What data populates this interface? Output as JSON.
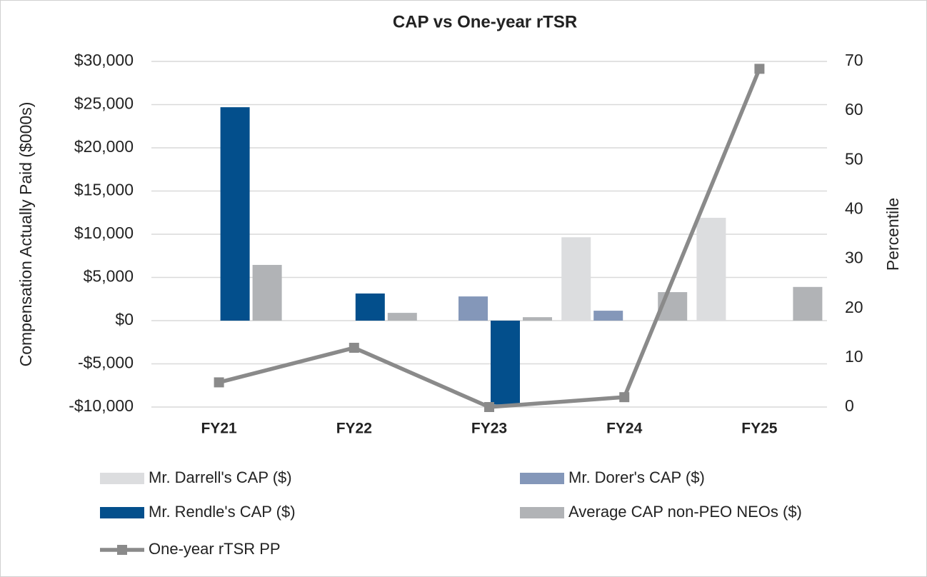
{
  "chart_data": {
    "type": "bar",
    "title": "CAP vs One-year rTSR",
    "y_label": "Compensation Actually Paid ($000s)",
    "y2_label": "Percentile",
    "categories": [
      "FY21",
      "FY22",
      "FY23",
      "FY24",
      "FY25"
    ],
    "series": [
      {
        "name": "Mr. Darrell's CAP ($)",
        "color": "#dcdddf",
        "values": [
          null,
          null,
          null,
          9650,
          11900
        ]
      },
      {
        "name": "Mr. Dorer's CAP ($)",
        "color": "#8497b9",
        "values": [
          null,
          null,
          2800,
          1150,
          null
        ]
      },
      {
        "name": "Mr. Rendle's CAP ($)",
        "color": "#034f8c",
        "values": [
          24700,
          3140,
          -9700,
          null,
          null
        ]
      },
      {
        "name": "Average CAP non-PEO NEOs ($)",
        "color": "#b1b3b6",
        "values": [
          6450,
          900,
          400,
          3300,
          3900
        ]
      },
      {
        "name": "One-year rTSR PP",
        "type": "line",
        "axis": "y2",
        "color": "#8a8a8a",
        "values": [
          5,
          12,
          0,
          2,
          68.5
        ]
      }
    ],
    "ylim": [
      -10000,
      30000
    ],
    "yticks": [
      {
        "value": -10000,
        "label": "-$10,000"
      },
      {
        "value": -5000,
        "label": "-$5,000"
      },
      {
        "value": 0,
        "label": "$0"
      },
      {
        "value": 5000,
        "label": "$5,000"
      },
      {
        "value": 10000,
        "label": "$10,000"
      },
      {
        "value": 15000,
        "label": "$15,000"
      },
      {
        "value": 20000,
        "label": "$20,000"
      },
      {
        "value": 25000,
        "label": "$25,000"
      },
      {
        "value": 30000,
        "label": "$30,000"
      }
    ],
    "y2lim": [
      0,
      70
    ],
    "y2ticks": [
      0,
      10,
      20,
      30,
      40,
      50,
      60,
      70
    ],
    "grid": true
  }
}
